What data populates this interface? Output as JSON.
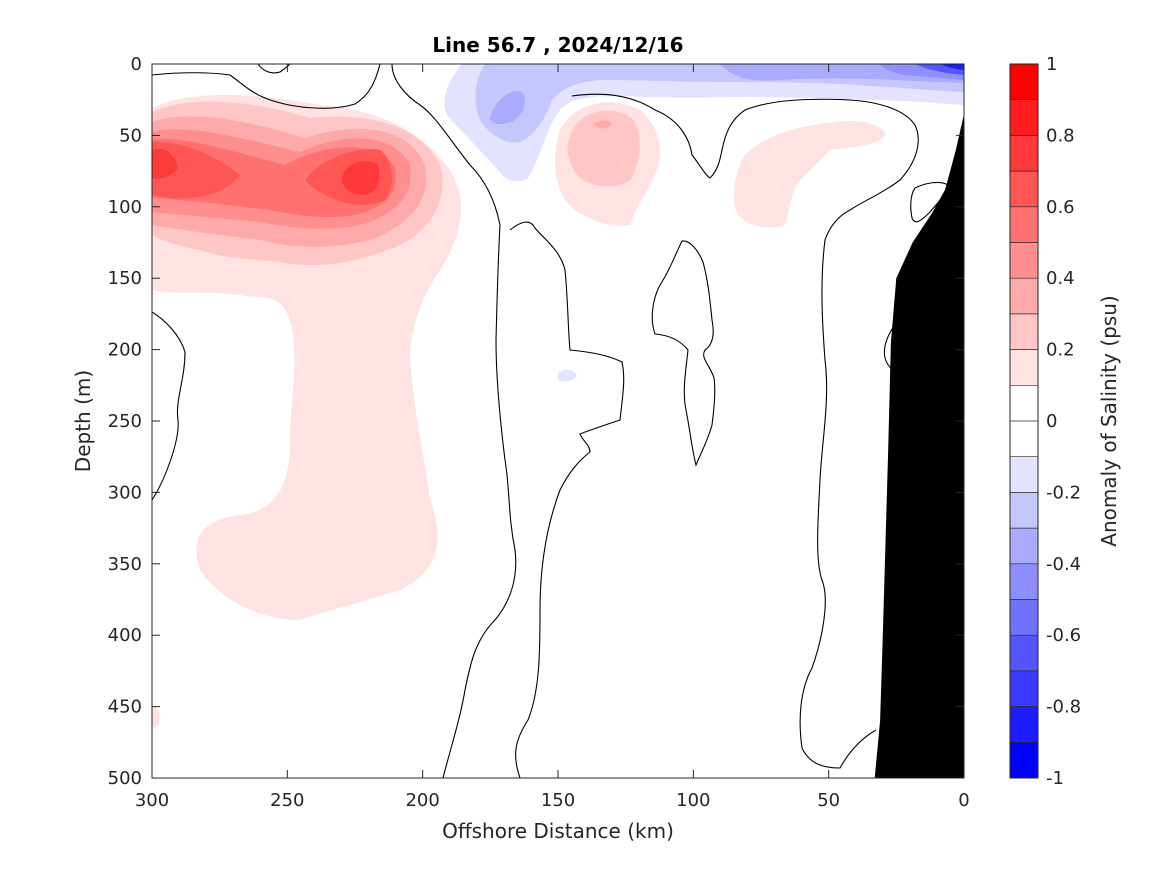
{
  "chart_data": {
    "type": "contour",
    "title": "Line 56.7 , 2024/12/16",
    "xlabel": "Offshore Distance (km)",
    "ylabel": "Depth (m)",
    "xlim": [
      300,
      0
    ],
    "ylim": [
      0,
      500
    ],
    "x_reversed": true,
    "y_reversed": true,
    "x_ticks": [
      "300",
      "250",
      "200",
      "150",
      "100",
      "50",
      "0"
    ],
    "y_ticks": [
      "0",
      "50",
      "100",
      "150",
      "200",
      "250",
      "300",
      "350",
      "400",
      "450",
      "500"
    ],
    "colorbar": {
      "label": "Anomaly of Salinity (psu)",
      "range": [
        -1,
        1
      ],
      "tick_labels": [
        "1",
        "0.8",
        "0.6",
        "0.4",
        "0.2",
        "0",
        "-0.2",
        "-0.4",
        "-0.6",
        "-0.8",
        "-1"
      ],
      "levels": [
        {
          "min": 0.9,
          "max": 1.0,
          "color": "#ff0000"
        },
        {
          "min": 0.8,
          "max": 0.9,
          "color": "#ff1c1c"
        },
        {
          "min": 0.7,
          "max": 0.8,
          "color": "#ff3939"
        },
        {
          "min": 0.6,
          "max": 0.7,
          "color": "#ff5555"
        },
        {
          "min": 0.5,
          "max": 0.6,
          "color": "#ff7171"
        },
        {
          "min": 0.4,
          "max": 0.5,
          "color": "#ff8e8e"
        },
        {
          "min": 0.3,
          "max": 0.4,
          "color": "#ffaaaa"
        },
        {
          "min": 0.2,
          "max": 0.3,
          "color": "#ffc6c6"
        },
        {
          "min": 0.1,
          "max": 0.2,
          "color": "#ffe3e3"
        },
        {
          "min": 0.0,
          "max": 0.1,
          "color": "#ffffff"
        },
        {
          "min": -0.1,
          "max": 0.0,
          "color": "#ffffff"
        },
        {
          "min": -0.2,
          "max": -0.1,
          "color": "#e3e3ff"
        },
        {
          "min": -0.3,
          "max": -0.2,
          "color": "#c6c6ff"
        },
        {
          "min": -0.4,
          "max": -0.3,
          "color": "#aaaaff"
        },
        {
          "min": -0.5,
          "max": -0.4,
          "color": "#8e8eff"
        },
        {
          "min": -0.6,
          "max": -0.5,
          "color": "#7171ff"
        },
        {
          "min": -0.7,
          "max": -0.6,
          "color": "#5555ff"
        },
        {
          "min": -0.8,
          "max": -0.7,
          "color": "#3939ff"
        },
        {
          "min": -0.9,
          "max": -0.8,
          "color": "#1c1cff"
        },
        {
          "min": -1.0,
          "max": -0.9,
          "color": "#0000ff"
        }
      ]
    },
    "features": [
      {
        "kind": "anomaly-max",
        "sign": "positive",
        "x_km": 295,
        "depth_m": 68,
        "value": 0.65
      },
      {
        "kind": "anomaly-max",
        "sign": "positive",
        "x_km": 222,
        "depth_m": 78,
        "value": 0.65
      },
      {
        "kind": "anomaly-max",
        "sign": "positive",
        "x_km": 135,
        "depth_m": 40,
        "value": 0.35
      },
      {
        "kind": "anomaly-max",
        "sign": "positive",
        "x_km": 72,
        "depth_m": 65,
        "value": 0.15
      },
      {
        "kind": "anomaly-min",
        "sign": "negative",
        "x_km": 170,
        "depth_m": 30,
        "value": -0.35
      },
      {
        "kind": "anomaly-min",
        "sign": "negative",
        "x_km": 5,
        "depth_m": 2,
        "value": -0.8
      }
    ],
    "bathymetry_fill": "#000000",
    "bathymetry": {
      "x_km": [
        0,
        0,
        3,
        7,
        12,
        19,
        25,
        27,
        28,
        29,
        30,
        31,
        33,
        0
      ],
      "depth_m": [
        500,
        35,
        60,
        88,
        105,
        125,
        150,
        195,
        270,
        335,
        400,
        460,
        500,
        500
      ]
    },
    "zero_contour_color": "#000000"
  }
}
